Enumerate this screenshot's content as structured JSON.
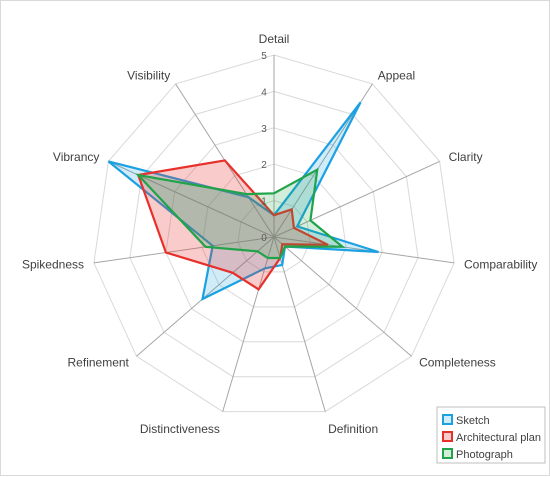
{
  "chart_data": {
    "type": "radar",
    "axes": [
      "Detail",
      "Appeal",
      "Clarity",
      "Comparability",
      "Completeness",
      "Definition",
      "Distinctiveness",
      "Refinement",
      "Spikedness",
      "Vibrancy",
      "Visibility"
    ],
    "rlim": [
      0,
      5
    ],
    "ticks": [
      "0",
      "1",
      "2",
      "3",
      "4",
      "5"
    ],
    "grid": true,
    "legend_position": "bottom-right",
    "series": [
      {
        "name": "Sketch",
        "color": "#1ba1e2",
        "fill": "rgba(27,161,226,0.20)",
        "values": [
          0.6,
          4.4,
          0.7,
          2.9,
          0.4,
          0.8,
          0.9,
          2.6,
          1.7,
          5.0,
          1.3
        ]
      },
      {
        "name": "Architectural plan",
        "color": "#e8302a",
        "fill": "rgba(232,48,42,0.25)",
        "values": [
          0.6,
          0.9,
          0.6,
          1.5,
          0.3,
          0.6,
          1.5,
          1.5,
          3.0,
          4.1,
          2.5
        ]
      },
      {
        "name": "Photograph",
        "color": "#21a34a",
        "fill": "rgba(33,163,74,0.20)",
        "values": [
          1.2,
          2.2,
          1.1,
          1.9,
          0.4,
          0.6,
          0.6,
          0.6,
          1.9,
          4.1,
          1.4
        ]
      }
    ]
  }
}
